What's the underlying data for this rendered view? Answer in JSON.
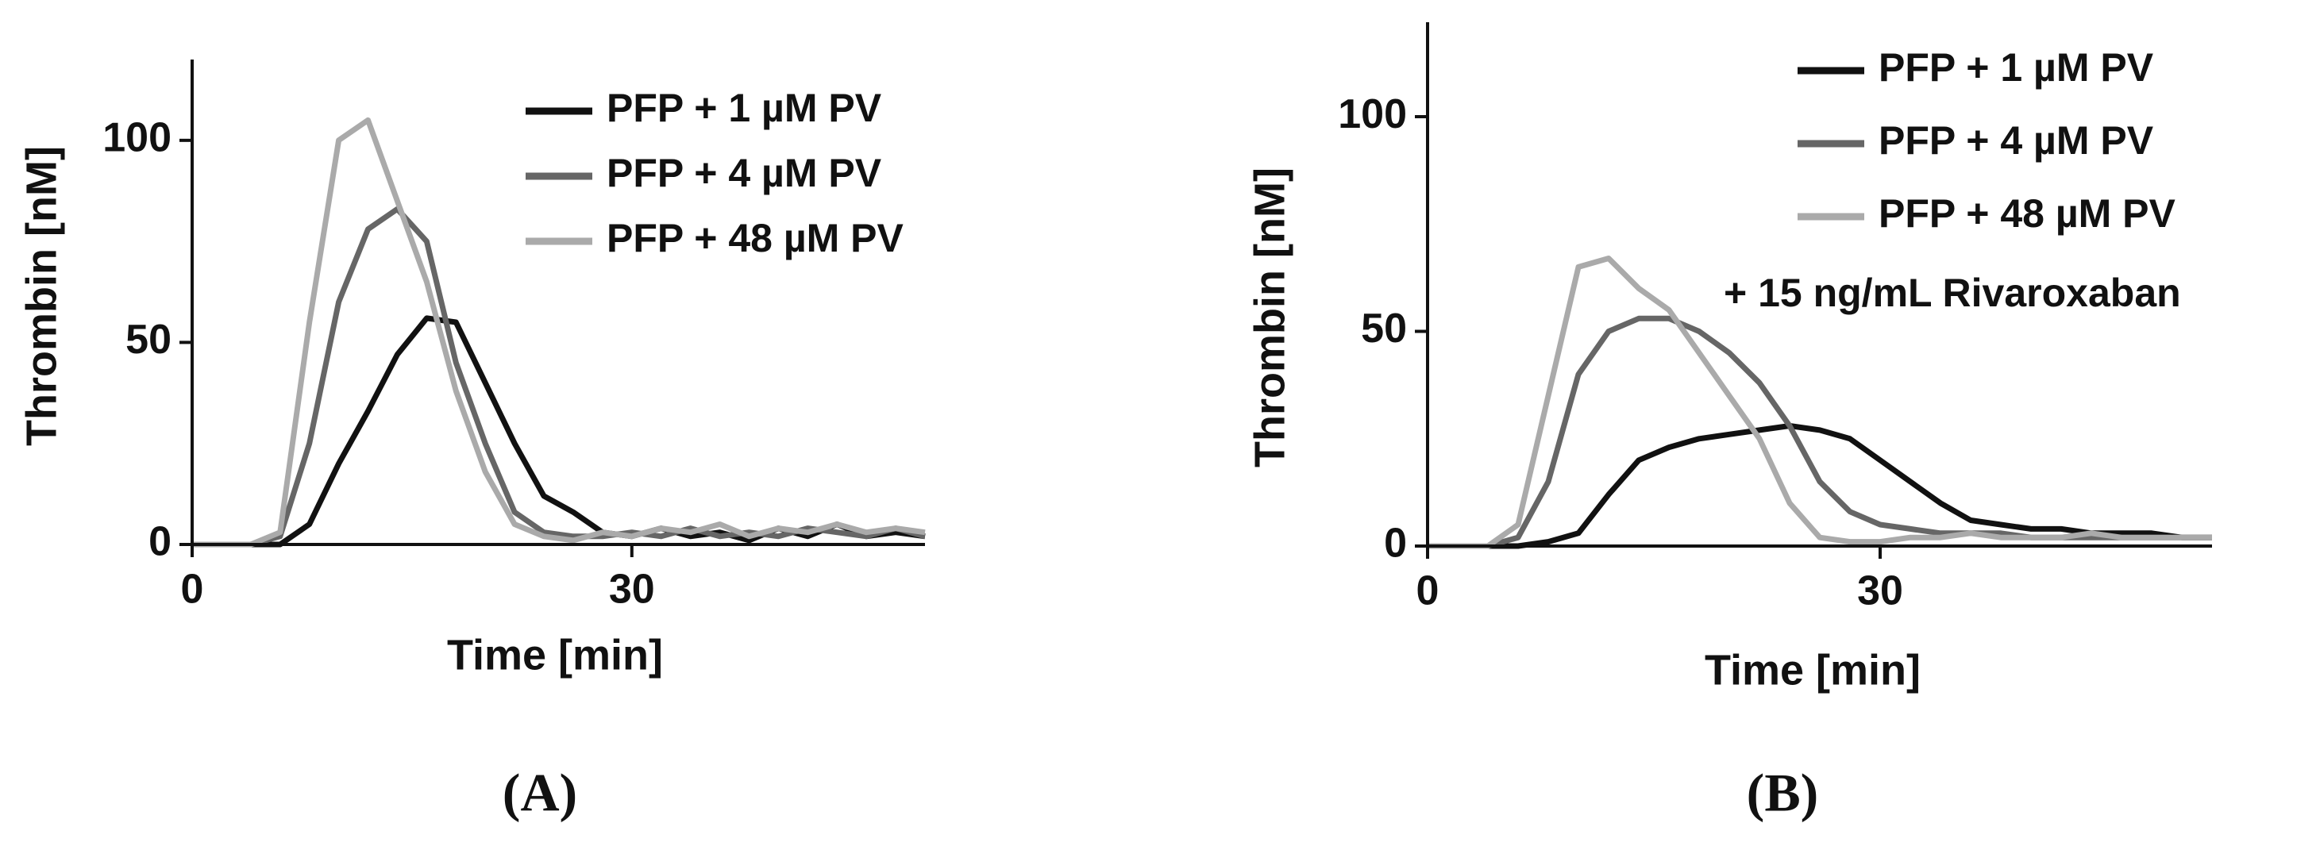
{
  "chart_data": [
    {
      "type": "line",
      "panel_label": "(A)",
      "x_label": "Time [min]",
      "y_label": "Thrombin [nM]",
      "xlim": [
        0,
        50
      ],
      "ylim": [
        0,
        120
      ],
      "xticks": [
        0,
        30
      ],
      "yticks": [
        0,
        50,
        100
      ],
      "x": [
        0,
        2,
        4,
        6,
        8,
        10,
        12,
        14,
        16,
        18,
        20,
        22,
        24,
        26,
        28,
        30,
        32,
        34,
        36,
        38,
        40,
        42,
        44,
        46,
        48,
        50
      ],
      "series": [
        {
          "name": "PFP + 1 µM PV",
          "color": "#111111",
          "values": [
            0,
            0,
            0,
            0,
            5,
            20,
            33,
            47,
            56,
            55,
            40,
            25,
            12,
            8,
            3,
            2,
            4,
            2,
            3,
            1,
            4,
            2,
            5,
            2,
            3,
            2
          ]
        },
        {
          "name": "PFP + 4 µM PV",
          "color": "#666666",
          "values": [
            0,
            0,
            0,
            2,
            25,
            60,
            78,
            83,
            75,
            45,
            25,
            8,
            3,
            2,
            2,
            3,
            2,
            4,
            2,
            3,
            2,
            4,
            3,
            2,
            4,
            2
          ]
        },
        {
          "name": "PFP + 48 µM PV",
          "color": "#aaaaaa",
          "values": [
            0,
            0,
            0,
            3,
            55,
            100,
            105,
            85,
            65,
            38,
            18,
            5,
            2,
            1,
            3,
            2,
            4,
            3,
            5,
            2,
            4,
            3,
            5,
            3,
            4,
            3
          ]
        }
      ]
    },
    {
      "type": "line",
      "panel_label": "(B)",
      "x_label": "Time [min]",
      "y_label": "Thrombin [nM]",
      "annotation": "+ 15 ng/mL Rivaroxaban",
      "xlim": [
        0,
        52
      ],
      "ylim": [
        0,
        122
      ],
      "xticks": [
        0,
        30
      ],
      "yticks": [
        0,
        50,
        100
      ],
      "x": [
        0,
        2,
        4,
        6,
        8,
        10,
        12,
        14,
        16,
        18,
        20,
        22,
        24,
        26,
        28,
        30,
        32,
        34,
        36,
        38,
        40,
        42,
        44,
        46,
        48,
        50,
        52
      ],
      "series": [
        {
          "name": "PFP + 1 µM PV",
          "color": "#111111",
          "values": [
            0,
            0,
            0,
            0,
            1,
            3,
            12,
            20,
            23,
            25,
            26,
            27,
            28,
            27,
            25,
            20,
            15,
            10,
            6,
            5,
            4,
            4,
            3,
            3,
            3,
            2,
            2
          ]
        },
        {
          "name": "PFP + 4 µM PV",
          "color": "#666666",
          "values": [
            0,
            0,
            0,
            2,
            15,
            40,
            50,
            53,
            53,
            50,
            45,
            38,
            28,
            15,
            8,
            5,
            4,
            3,
            3,
            3,
            2,
            2,
            2,
            2,
            2,
            2,
            2
          ]
        },
        {
          "name": "PFP + 48 µM PV",
          "color": "#aaaaaa",
          "values": [
            0,
            0,
            0,
            5,
            35,
            65,
            67,
            60,
            55,
            45,
            35,
            25,
            10,
            2,
            1,
            1,
            2,
            2,
            3,
            2,
            2,
            2,
            3,
            2,
            2,
            2,
            2
          ]
        }
      ]
    }
  ]
}
